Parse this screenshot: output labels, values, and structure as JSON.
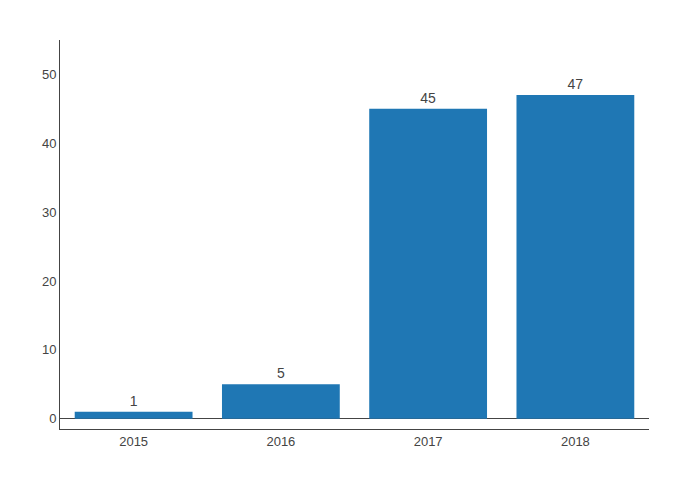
{
  "chart_data": {
    "type": "bar",
    "categories": [
      "2015",
      "2016",
      "2017",
      "2018"
    ],
    "values": [
      1,
      5,
      45,
      47
    ],
    "ylim": [
      -1.5,
      55
    ],
    "yticks": [
      0,
      10,
      20,
      30,
      40,
      50
    ],
    "grid": false,
    "data_labels": true
  }
}
